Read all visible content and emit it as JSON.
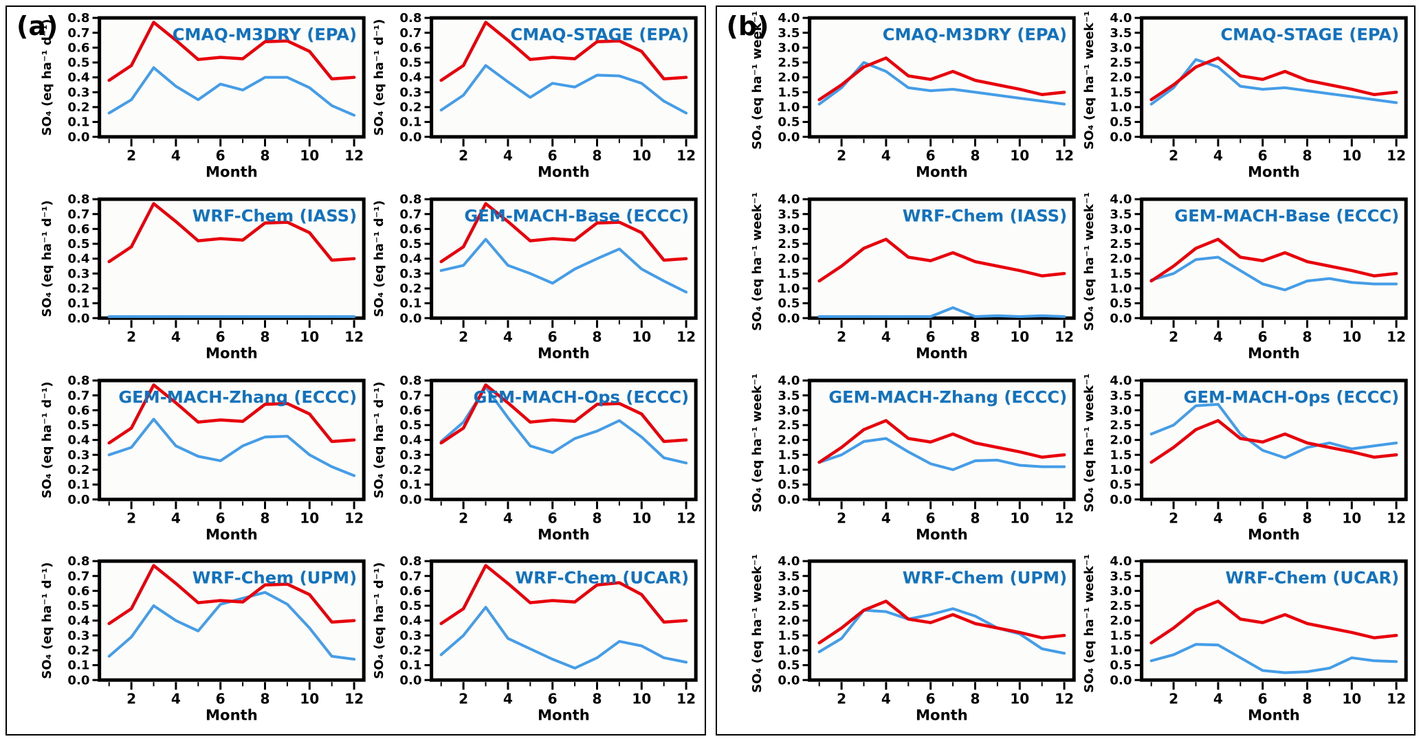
{
  "figure": {
    "description_visible_text_only": true
  },
  "colors": {
    "red_series": "#e8000b",
    "blue_series": "#459de8",
    "title_text": "#1272bd",
    "axis_text": "#000000",
    "plot_background": "#fcfcfa",
    "frame": "#000000"
  },
  "chart_data": {
    "type": "line",
    "x": [
      1,
      2,
      3,
      4,
      5,
      6,
      7,
      8,
      9,
      10,
      11,
      12
    ],
    "xlabel": "Month",
    "xtick_labels": [
      2,
      4,
      6,
      8,
      10,
      12
    ],
    "legend": "none (red and blue unlabeled series in every subplot)",
    "panels": [
      {
        "label": "(a)",
        "ylabel": "SO₄ (eq ha⁻¹ d⁻¹)",
        "ylim": [
          0.0,
          0.8
        ],
        "ytick_step": 0.1,
        "ytick_decimals": 1,
        "charts": [
          {
            "title": "CMAQ-M3DRY (EPA)",
            "red": [
              0.38,
              0.48,
              0.77,
              0.65,
              0.52,
              0.535,
              0.525,
              0.64,
              0.645,
              0.575,
              0.39,
              0.4
            ],
            "blue": [
              0.16,
              0.25,
              0.465,
              0.34,
              0.25,
              0.355,
              0.315,
              0.4,
              0.4,
              0.33,
              0.21,
              0.145
            ]
          },
          {
            "title": "CMAQ-STAGE (EPA)",
            "red": [
              0.38,
              0.48,
              0.77,
              0.65,
              0.52,
              0.535,
              0.525,
              0.64,
              0.645,
              0.575,
              0.39,
              0.4
            ],
            "blue": [
              0.18,
              0.28,
              0.48,
              0.37,
              0.265,
              0.36,
              0.335,
              0.415,
              0.41,
              0.36,
              0.24,
              0.16
            ]
          },
          {
            "title": "WRF-Chem (IASS)",
            "red": [
              0.38,
              0.48,
              0.77,
              0.65,
              0.52,
              0.535,
              0.525,
              0.64,
              0.645,
              0.575,
              0.39,
              0.4
            ],
            "blue": [
              0.01,
              0.01,
              0.01,
              0.01,
              0.01,
              0.01,
              0.01,
              0.01,
              0.01,
              0.01,
              0.01,
              0.01
            ]
          },
          {
            "title": "GEM-MACH-Base (ECCC)",
            "red": [
              0.38,
              0.48,
              0.77,
              0.65,
              0.52,
              0.535,
              0.525,
              0.64,
              0.645,
              0.575,
              0.39,
              0.4
            ],
            "blue": [
              0.32,
              0.355,
              0.53,
              0.355,
              0.3,
              0.235,
              0.33,
              0.4,
              0.465,
              0.33,
              0.25,
              0.175
            ]
          },
          {
            "title": "GEM-MACH-Zhang (ECCC)",
            "red": [
              0.38,
              0.48,
              0.77,
              0.65,
              0.52,
              0.535,
              0.525,
              0.64,
              0.645,
              0.575,
              0.39,
              0.4
            ],
            "blue": [
              0.3,
              0.35,
              0.54,
              0.36,
              0.29,
              0.26,
              0.36,
              0.42,
              0.425,
              0.3,
              0.22,
              0.16
            ]
          },
          {
            "title": "GEM-MACH-Ops (ECCC)",
            "red": [
              0.38,
              0.48,
              0.77,
              0.65,
              0.52,
              0.535,
              0.525,
              0.64,
              0.645,
              0.575,
              0.39,
              0.4
            ],
            "blue": [
              0.39,
              0.52,
              0.755,
              0.55,
              0.36,
              0.315,
              0.41,
              0.46,
              0.53,
              0.42,
              0.28,
              0.245
            ]
          },
          {
            "title": "WRF-Chem (UPM)",
            "red": [
              0.38,
              0.48,
              0.77,
              0.65,
              0.52,
              0.535,
              0.525,
              0.64,
              0.645,
              0.575,
              0.39,
              0.4
            ],
            "blue": [
              0.16,
              0.29,
              0.5,
              0.4,
              0.33,
              0.51,
              0.55,
              0.59,
              0.51,
              0.35,
              0.16,
              0.14
            ]
          },
          {
            "title": "WRF-Chem (UCAR)",
            "red": [
              0.38,
              0.48,
              0.77,
              0.65,
              0.52,
              0.535,
              0.525,
              0.64,
              0.655,
              0.575,
              0.39,
              0.4
            ],
            "blue": [
              0.17,
              0.3,
              0.49,
              0.28,
              0.21,
              0.14,
              0.08,
              0.15,
              0.26,
              0.23,
              0.15,
              0.12
            ]
          }
        ]
      },
      {
        "label": "(b)",
        "ylabel": "SO₄ (eq ha⁻¹ week⁻¹)",
        "ylim": [
          0.0,
          4.0
        ],
        "ytick_step": 0.5,
        "ytick_decimals": 1,
        "charts": [
          {
            "title": "CMAQ-M3DRY (EPA)",
            "red": [
              1.25,
              1.75,
              2.35,
              2.65,
              2.05,
              1.93,
              2.2,
              1.9,
              1.75,
              1.6,
              1.42,
              1.5
            ],
            "blue": [
              1.1,
              1.65,
              2.5,
              2.2,
              1.65,
              1.55,
              1.6,
              1.5,
              1.4,
              1.3,
              1.2,
              1.1
            ]
          },
          {
            "title": "CMAQ-STAGE (EPA)",
            "red": [
              1.25,
              1.75,
              2.35,
              2.65,
              2.05,
              1.93,
              2.2,
              1.9,
              1.75,
              1.6,
              1.42,
              1.5
            ],
            "blue": [
              1.1,
              1.65,
              2.6,
              2.35,
              1.7,
              1.6,
              1.65,
              1.55,
              1.45,
              1.35,
              1.25,
              1.15
            ]
          },
          {
            "title": "WRF-Chem (IASS)",
            "red": [
              1.25,
              1.75,
              2.35,
              2.65,
              2.05,
              1.93,
              2.2,
              1.9,
              1.75,
              1.6,
              1.42,
              1.5
            ],
            "blue": [
              0.05,
              0.05,
              0.05,
              0.05,
              0.05,
              0.05,
              0.35,
              0.05,
              0.08,
              0.05,
              0.08,
              0.05
            ]
          },
          {
            "title": "GEM-MACH-Base (ECCC)",
            "red": [
              1.25,
              1.75,
              2.35,
              2.65,
              2.05,
              1.93,
              2.2,
              1.9,
              1.75,
              1.6,
              1.42,
              1.5
            ],
            "blue": [
              1.28,
              1.5,
              1.97,
              2.05,
              1.6,
              1.15,
              0.95,
              1.25,
              1.33,
              1.2,
              1.15,
              1.15
            ]
          },
          {
            "title": "GEM-MACH-Zhang (ECCC)",
            "red": [
              1.25,
              1.75,
              2.35,
              2.65,
              2.05,
              1.93,
              2.2,
              1.9,
              1.75,
              1.6,
              1.42,
              1.5
            ],
            "blue": [
              1.25,
              1.5,
              1.95,
              2.05,
              1.6,
              1.2,
              1.0,
              1.3,
              1.32,
              1.15,
              1.1,
              1.1
            ]
          },
          {
            "title": "GEM-MACH-Ops (ECCC)",
            "red": [
              1.25,
              1.75,
              2.35,
              2.65,
              2.05,
              1.93,
              2.2,
              1.9,
              1.75,
              1.6,
              1.42,
              1.5
            ],
            "blue": [
              2.2,
              2.5,
              3.15,
              3.2,
              2.2,
              1.65,
              1.4,
              1.75,
              1.9,
              1.7,
              1.8,
              1.9
            ]
          },
          {
            "title": "WRF-Chem (UPM)",
            "red": [
              1.25,
              1.75,
              2.35,
              2.65,
              2.05,
              1.93,
              2.2,
              1.9,
              1.75,
              1.6,
              1.42,
              1.5
            ],
            "blue": [
              0.95,
              1.4,
              2.35,
              2.3,
              2.05,
              2.2,
              2.4,
              2.15,
              1.75,
              1.55,
              1.05,
              0.9
            ]
          },
          {
            "title": "WRF-Chem (UCAR)",
            "red": [
              1.25,
              1.75,
              2.35,
              2.65,
              2.05,
              1.93,
              2.2,
              1.9,
              1.75,
              1.6,
              1.42,
              1.5
            ],
            "blue": [
              0.65,
              0.85,
              1.2,
              1.18,
              0.75,
              0.32,
              0.25,
              0.28,
              0.4,
              0.75,
              0.65,
              0.62
            ]
          }
        ]
      }
    ]
  }
}
